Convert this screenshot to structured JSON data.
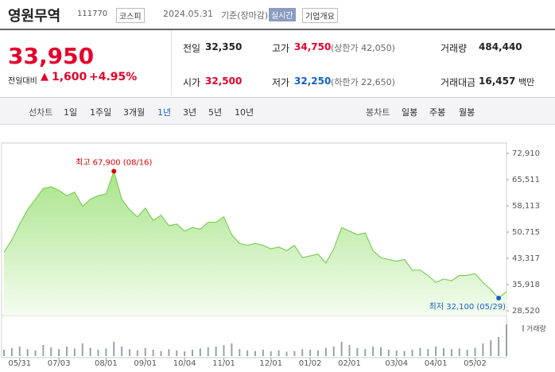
{
  "header": {
    "name": "영원무역",
    "code": "111770",
    "market": "코스피",
    "date": "2024.05.31",
    "basis": "기준(장마감)",
    "realtime": "실시간",
    "company": "기업개요"
  },
  "quote": {
    "price": "33,950",
    "change_label": "전일대비",
    "change_arrow": "▲",
    "change": "1,600",
    "change_pct": "+4.95%",
    "stats": [
      {
        "label": "전일",
        "value": "32,350",
        "color": "#222222"
      },
      {
        "label": "고가",
        "value": "34,750",
        "note": "(상한가 42,050)",
        "color": "#e4002b"
      },
      {
        "label": "거래량",
        "value": "484,440",
        "color": "#222222"
      },
      {
        "label": "시가",
        "value": "32,500",
        "color": "#e4002b"
      },
      {
        "label": "저가",
        "value": "32,250",
        "note": "(하한가 22,650)",
        "color": "#1261c4"
      },
      {
        "label": "거래대금",
        "value": "16,457",
        "unit": "백만",
        "color": "#222222"
      }
    ]
  },
  "tabs": {
    "line_label": "선차트",
    "periods": [
      "1일",
      "1주일",
      "3개월",
      "1년",
      "3년",
      "5년",
      "10년"
    ],
    "selected": 3,
    "candle_label": "봉차트",
    "candles": [
      "일봉",
      "주봉",
      "월봉"
    ]
  },
  "chart_data": {
    "type": "area",
    "color": "#7ccf55",
    "categories": [
      null,
      null,
      "05/31",
      null,
      null,
      null,
      null,
      "07/03",
      null,
      null,
      null,
      null,
      null,
      "08/01",
      null,
      null,
      null,
      null,
      "09/01",
      null,
      null,
      null,
      null,
      "10/04",
      null,
      null,
      null,
      null,
      "11/01",
      null,
      null,
      null,
      null,
      null,
      "12/01",
      null,
      null,
      null,
      null,
      "01/02",
      null,
      null,
      null,
      null,
      "02/01",
      null,
      null,
      null,
      null,
      null,
      "03/04",
      null,
      null,
      null,
      null,
      "04/01",
      null,
      null,
      null,
      null,
      "05/02",
      null,
      null,
      null,
      null
    ],
    "values": [
      45000,
      48500,
      53000,
      57000,
      60000,
      63000,
      63500,
      62500,
      61000,
      62000,
      58000,
      60000,
      61000,
      61500,
      67900,
      60000,
      57000,
      55000,
      57500,
      54000,
      55500,
      52500,
      53000,
      51000,
      52000,
      51500,
      53500,
      53500,
      55000,
      50000,
      47500,
      47000,
      47500,
      47000,
      46000,
      46500,
      45500,
      47000,
      43500,
      44000,
      44500,
      42000,
      46000,
      52000,
      51000,
      50000,
      50500,
      45500,
      43500,
      43000,
      42500,
      43000,
      40000,
      40000,
      38500,
      36500,
      37500,
      37000,
      38500,
      38500,
      39000,
      36500,
      34500,
      32100,
      33950
    ],
    "ylim": [
      28520,
      72910
    ],
    "yticks": [
      {
        "value": 72910,
        "label": "72,910"
      },
      {
        "value": 65511,
        "label": "65,511"
      },
      {
        "value": 58113,
        "label": "58,113"
      },
      {
        "value": 50715,
        "label": "50,715"
      },
      {
        "value": 43317,
        "label": "43,317"
      },
      {
        "value": 35918,
        "label": "35,918"
      },
      {
        "value": 28520,
        "label": "28,520"
      }
    ],
    "high": {
      "label": "최고 67,900 (08/16)",
      "value": 67900,
      "color": "#e00000"
    },
    "low": {
      "label": "최저 32,100 (05/29)",
      "value": 32100,
      "color": "#1261c4"
    },
    "volume": {
      "name": "거래량",
      "color": "#9aa0b0",
      "values": [
        20,
        25,
        30,
        22,
        18,
        35,
        28,
        22,
        30,
        24,
        40,
        26,
        20,
        24,
        45,
        30,
        22,
        18,
        25,
        20,
        16,
        22,
        18,
        15,
        20,
        24,
        28,
        30,
        35,
        40,
        22,
        18,
        16,
        20,
        15,
        18,
        14,
        16,
        22,
        20,
        18,
        26,
        30,
        45,
        35,
        25,
        22,
        30,
        28,
        20,
        18,
        16,
        20,
        26,
        22,
        30,
        25,
        22,
        24,
        20,
        26,
        40,
        50,
        60,
        100
      ]
    }
  }
}
